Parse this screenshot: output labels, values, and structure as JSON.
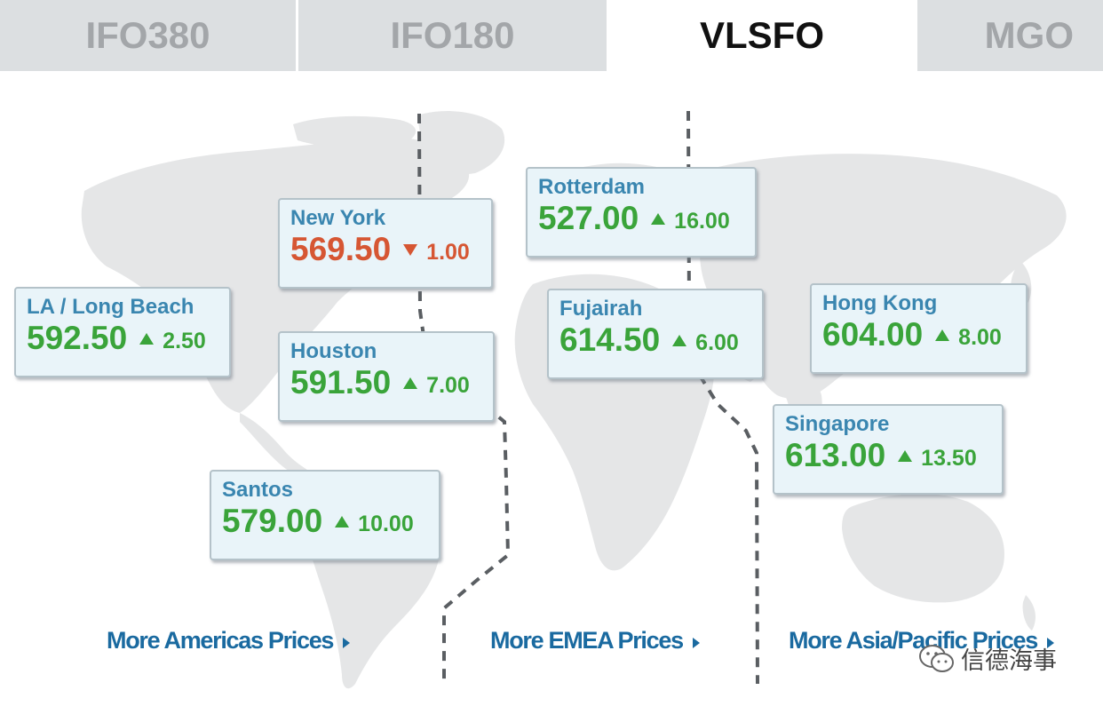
{
  "tabs": [
    {
      "label": "IFO380",
      "active": false
    },
    {
      "label": "IFO180",
      "active": false
    },
    {
      "label": "VLSFO",
      "active": true
    },
    {
      "label": "MGO",
      "active": false
    }
  ],
  "ports": [
    {
      "city": "New York",
      "price": "569.50",
      "change": "1.00",
      "direction": "down"
    },
    {
      "city": "Rotterdam",
      "price": "527.00",
      "change": "16.00",
      "direction": "up"
    },
    {
      "city": "LA / Long Beach",
      "price": "592.50",
      "change": "2.50",
      "direction": "up"
    },
    {
      "city": "Houston",
      "price": "591.50",
      "change": "7.00",
      "direction": "up"
    },
    {
      "city": "Fujairah",
      "price": "614.50",
      "change": "6.00",
      "direction": "up"
    },
    {
      "city": "Hong Kong",
      "price": "604.00",
      "change": "8.00",
      "direction": "up"
    },
    {
      "city": "Singapore",
      "price": "613.00",
      "change": "13.50",
      "direction": "up"
    },
    {
      "city": "Santos",
      "price": "579.00",
      "change": "10.00",
      "direction": "up"
    }
  ],
  "links": {
    "americas": "More Americas Prices",
    "emea": "More EMEA Prices",
    "asia": "More Asia/Pacific Prices"
  },
  "watermark": "信德海事",
  "colors": {
    "up": "#3aa43a",
    "down": "#d65633",
    "city": "#3a86b0",
    "link": "#1a6aa0",
    "card_bg": "#e9f4f9"
  },
  "icons": {
    "up": "triangle-up-icon",
    "down": "triangle-down-icon",
    "more": "chevron-right-icon",
    "watermark": "wechat-icon"
  }
}
